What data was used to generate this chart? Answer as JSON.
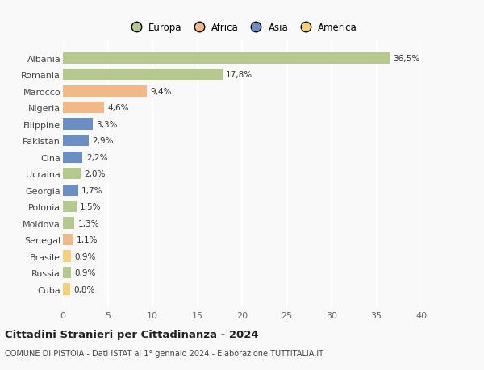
{
  "categories": [
    "Albania",
    "Romania",
    "Marocco",
    "Nigeria",
    "Filippine",
    "Pakistan",
    "Cina",
    "Ucraina",
    "Georgia",
    "Polonia",
    "Moldova",
    "Senegal",
    "Brasile",
    "Russia",
    "Cuba"
  ],
  "values": [
    36.5,
    17.8,
    9.4,
    4.6,
    3.3,
    2.9,
    2.2,
    2.0,
    1.7,
    1.5,
    1.3,
    1.1,
    0.9,
    0.9,
    0.8
  ],
  "labels": [
    "36,5%",
    "17,8%",
    "9,4%",
    "4,6%",
    "3,3%",
    "2,9%",
    "2,2%",
    "2,0%",
    "1,7%",
    "1,5%",
    "1,3%",
    "1,1%",
    "0,9%",
    "0,9%",
    "0,8%"
  ],
  "colors": [
    "#b5c98e",
    "#b5c98e",
    "#f0b987",
    "#f0b987",
    "#6b8ec4",
    "#6b8ec4",
    "#6b8ec4",
    "#b5c98e",
    "#6b8ec4",
    "#b5c98e",
    "#b5c98e",
    "#f0b987",
    "#f5d07a",
    "#b5c98e",
    "#f5d07a"
  ],
  "legend_labels": [
    "Europa",
    "Africa",
    "Asia",
    "America"
  ],
  "legend_colors": [
    "#b5c98e",
    "#f0b987",
    "#6b8ec4",
    "#f5d07a"
  ],
  "title": "Cittadini Stranieri per Cittadinanza - 2024",
  "subtitle": "COMUNE DI PISTOIA - Dati ISTAT al 1° gennaio 2024 - Elaborazione TUTTITALIA.IT",
  "xlim": [
    0,
    40
  ],
  "xticks": [
    0,
    5,
    10,
    15,
    20,
    25,
    30,
    35,
    40
  ],
  "background_color": "#f9f9f9",
  "grid_color": "#ffffff",
  "bar_height": 0.7
}
